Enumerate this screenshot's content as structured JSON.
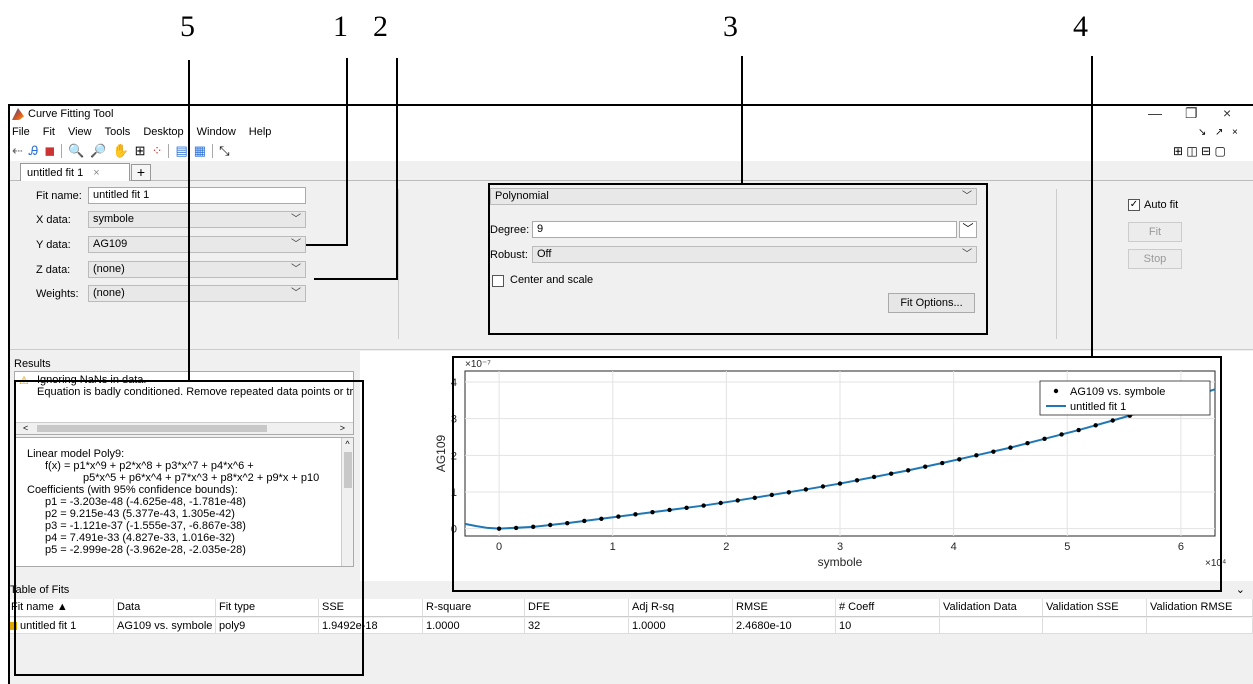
{
  "callouts": [
    "5",
    "1",
    "2",
    "3",
    "4"
  ],
  "window": {
    "title": "Curve Fitting Tool",
    "controls": [
      "—",
      "❐",
      "×"
    ],
    "sub_controls": [
      "↘",
      "↗",
      "×"
    ]
  },
  "menu": [
    "File",
    "Fit",
    "View",
    "Tools",
    "Desktop",
    "Window",
    "Help"
  ],
  "tab": {
    "label": "untitled fit 1",
    "close": "×",
    "add": "+"
  },
  "fit_form": {
    "fit_name_label": "Fit name:",
    "fit_name_value": "untitled fit 1",
    "x_label": "X data:",
    "x_value": "symbole",
    "y_label": "Y data:",
    "y_value": "AG109",
    "z_label": "Z data:",
    "z_value": "(none)",
    "w_label": "Weights:",
    "w_value": "(none)"
  },
  "fit_type": {
    "type": "Polynomial",
    "degree_label": "Degree:",
    "degree_value": "9",
    "robust_label": "Robust:",
    "robust_value": "Off",
    "center_scale": "Center and scale",
    "fit_options": "Fit Options..."
  },
  "autofit": {
    "label": "Auto fit",
    "fit": "Fit",
    "stop": "Stop"
  },
  "results": {
    "title": "Results",
    "warn1": "Ignoring NaNs in data.",
    "warn2": "Equation is badly conditioned. Remove repeated data points or tr",
    "lines": [
      "Linear model Poly9:",
      "f(x) = p1*x^9 + p2*x^8 + p3*x^7 + p4*x^6 +",
      "p5*x^5 + p6*x^4 + p7*x^3 + p8*x^2 + p9*x + p10",
      "Coefficients (with 95% confidence bounds):",
      "p1 =  -3.203e-48  (-4.625e-48, -1.781e-48)",
      "p2 =  9.215e-43  (5.377e-43, 1.305e-42)",
      "p3 =  -1.121e-37  (-1.555e-37, -6.867e-38)",
      "p4 =  7.491e-33  (4.827e-33, 1.016e-32)",
      "p5 =  -2.999e-28  (-3.962e-28, -2.035e-28)"
    ]
  },
  "chart_data": {
    "type": "scatter",
    "xlabel": "symbole",
    "ylabel": "AG109",
    "x_exponent": "×10⁴",
    "y_exponent": "×10⁻⁷",
    "xlim": [
      -0.3,
      6.3
    ],
    "ylim": [
      -0.2,
      4.3
    ],
    "xticks": [
      0,
      1,
      2,
      3,
      4,
      5,
      6
    ],
    "yticks": [
      0,
      1,
      2,
      3,
      4
    ],
    "grid": true,
    "legend_position": "top-right",
    "series": [
      {
        "name": "AG109 vs. symbole",
        "kind": "points",
        "x": [
          0,
          0.15,
          0.3,
          0.45,
          0.6,
          0.75,
          0.9,
          1.05,
          1.2,
          1.35,
          1.5,
          1.65,
          1.8,
          1.95,
          2.1,
          2.25,
          2.4,
          2.55,
          2.7,
          2.85,
          3.0,
          3.15,
          3.3,
          3.45,
          3.6,
          3.75,
          3.9,
          4.05,
          4.2,
          4.35,
          4.5,
          4.65,
          4.8,
          4.95,
          5.1,
          5.25,
          5.4,
          5.55,
          5.7,
          5.85,
          6.0
        ],
        "y": [
          0,
          0.02,
          0.05,
          0.1,
          0.15,
          0.21,
          0.27,
          0.33,
          0.39,
          0.45,
          0.51,
          0.57,
          0.63,
          0.7,
          0.77,
          0.84,
          0.92,
          0.99,
          1.07,
          1.15,
          1.23,
          1.32,
          1.41,
          1.5,
          1.59,
          1.69,
          1.79,
          1.89,
          2.0,
          2.1,
          2.21,
          2.33,
          2.45,
          2.57,
          2.69,
          2.82,
          2.95,
          3.08,
          3.22,
          3.36,
          3.5
        ]
      },
      {
        "name": "untitled fit 1",
        "kind": "line",
        "x": [
          -0.3,
          -0.2,
          -0.1,
          0,
          0.3,
          0.6,
          0.9,
          1.2,
          1.5,
          1.8,
          2.1,
          2.4,
          2.7,
          3.0,
          3.3,
          3.6,
          3.9,
          4.2,
          4.5,
          4.8,
          5.1,
          5.4,
          5.7,
          6.0,
          6.3
        ],
        "y": [
          0.13,
          0.07,
          0.02,
          0,
          0.05,
          0.15,
          0.27,
          0.39,
          0.51,
          0.63,
          0.77,
          0.92,
          1.07,
          1.23,
          1.41,
          1.59,
          1.79,
          2.0,
          2.21,
          2.45,
          2.69,
          2.95,
          3.22,
          3.5,
          3.8
        ]
      }
    ]
  },
  "table": {
    "title": "Table of Fits",
    "headers": [
      "Fit name ▲",
      "Data",
      "Fit type",
      "SSE",
      "R-square",
      "DFE",
      "Adj R-sq",
      "RMSE",
      "# Coeff",
      "Validation Data",
      "Validation SSE",
      "Validation RMSE"
    ],
    "row": [
      "untitled fit 1",
      "AG109 vs. symbole",
      "poly9",
      "1.9492e-18",
      "1.0000",
      "32",
      "1.0000",
      "2.4680e-10",
      "10",
      "",
      "",
      ""
    ]
  },
  "colors": {
    "accent": "#1f77b4",
    "window_bg": "#f0f0f0"
  }
}
